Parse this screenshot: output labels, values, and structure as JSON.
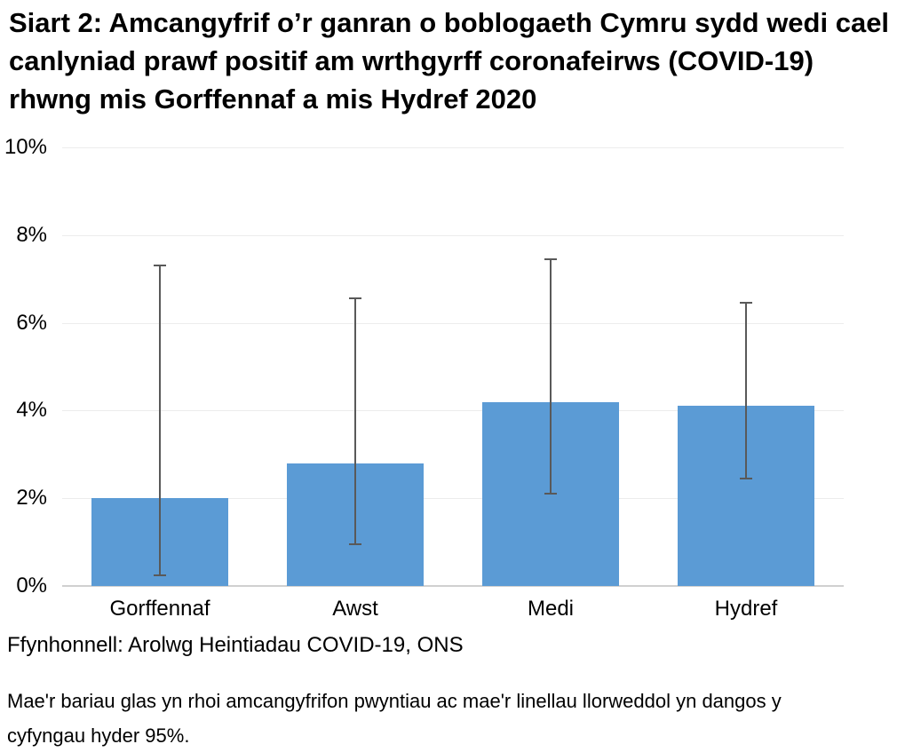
{
  "page": {
    "background_color": "#ffffff",
    "text_color": "#000000"
  },
  "header": {
    "title": "Siart 2: Amcangyfrif o’r ganran o boblogaeth Cymru sydd wedi cael canlyniad prawf positif am wrthgyrff coronafeirws (COVID-19) rhwng mis Gorffennaf a mis Hydref 2020"
  },
  "footer": {
    "source": "Ffynhonnell: Arolwg Heintiadau COVID-19, ONS",
    "footnote": "Mae'r bariau glas yn rhoi amcangyfrifon pwyntiau ac mae'r linellau llorweddol yn dangos y cyfyngau hyder 95%."
  },
  "chart_data": {
    "type": "bar",
    "title": "Siart 2: Amcangyfrif o’r ganran o boblogaeth Cymru sydd wedi cael canlyniad prawf positif am wrthgyrff coronafeirws (COVID-19) rhwng mis Gorffennaf a mis Hydref 2020",
    "categories": [
      "Gorffennaf",
      "Awst",
      "Medi",
      "Hydref"
    ],
    "values": [
      2.0,
      2.8,
      4.2,
      4.1
    ],
    "error_bars": {
      "meaning": "cyfyngau hyder 95% (95% confidence intervals)",
      "lower": [
        0.25,
        0.95,
        2.1,
        2.45
      ],
      "upper": [
        7.3,
        6.55,
        7.45,
        6.45
      ]
    },
    "xlabel": "",
    "ylabel": "",
    "ylim": [
      0,
      10
    ],
    "yticks": [
      0,
      2,
      4,
      6,
      8,
      10
    ],
    "ytick_labels": [
      "0%",
      "2%",
      "4%",
      "6%",
      "8%",
      "10%"
    ],
    "grid": true,
    "legend": false,
    "colors": {
      "bar": "#5B9BD5",
      "error_bar": "#595959",
      "gridline": "#ececec",
      "axis_line": "#d0d0d0"
    }
  }
}
